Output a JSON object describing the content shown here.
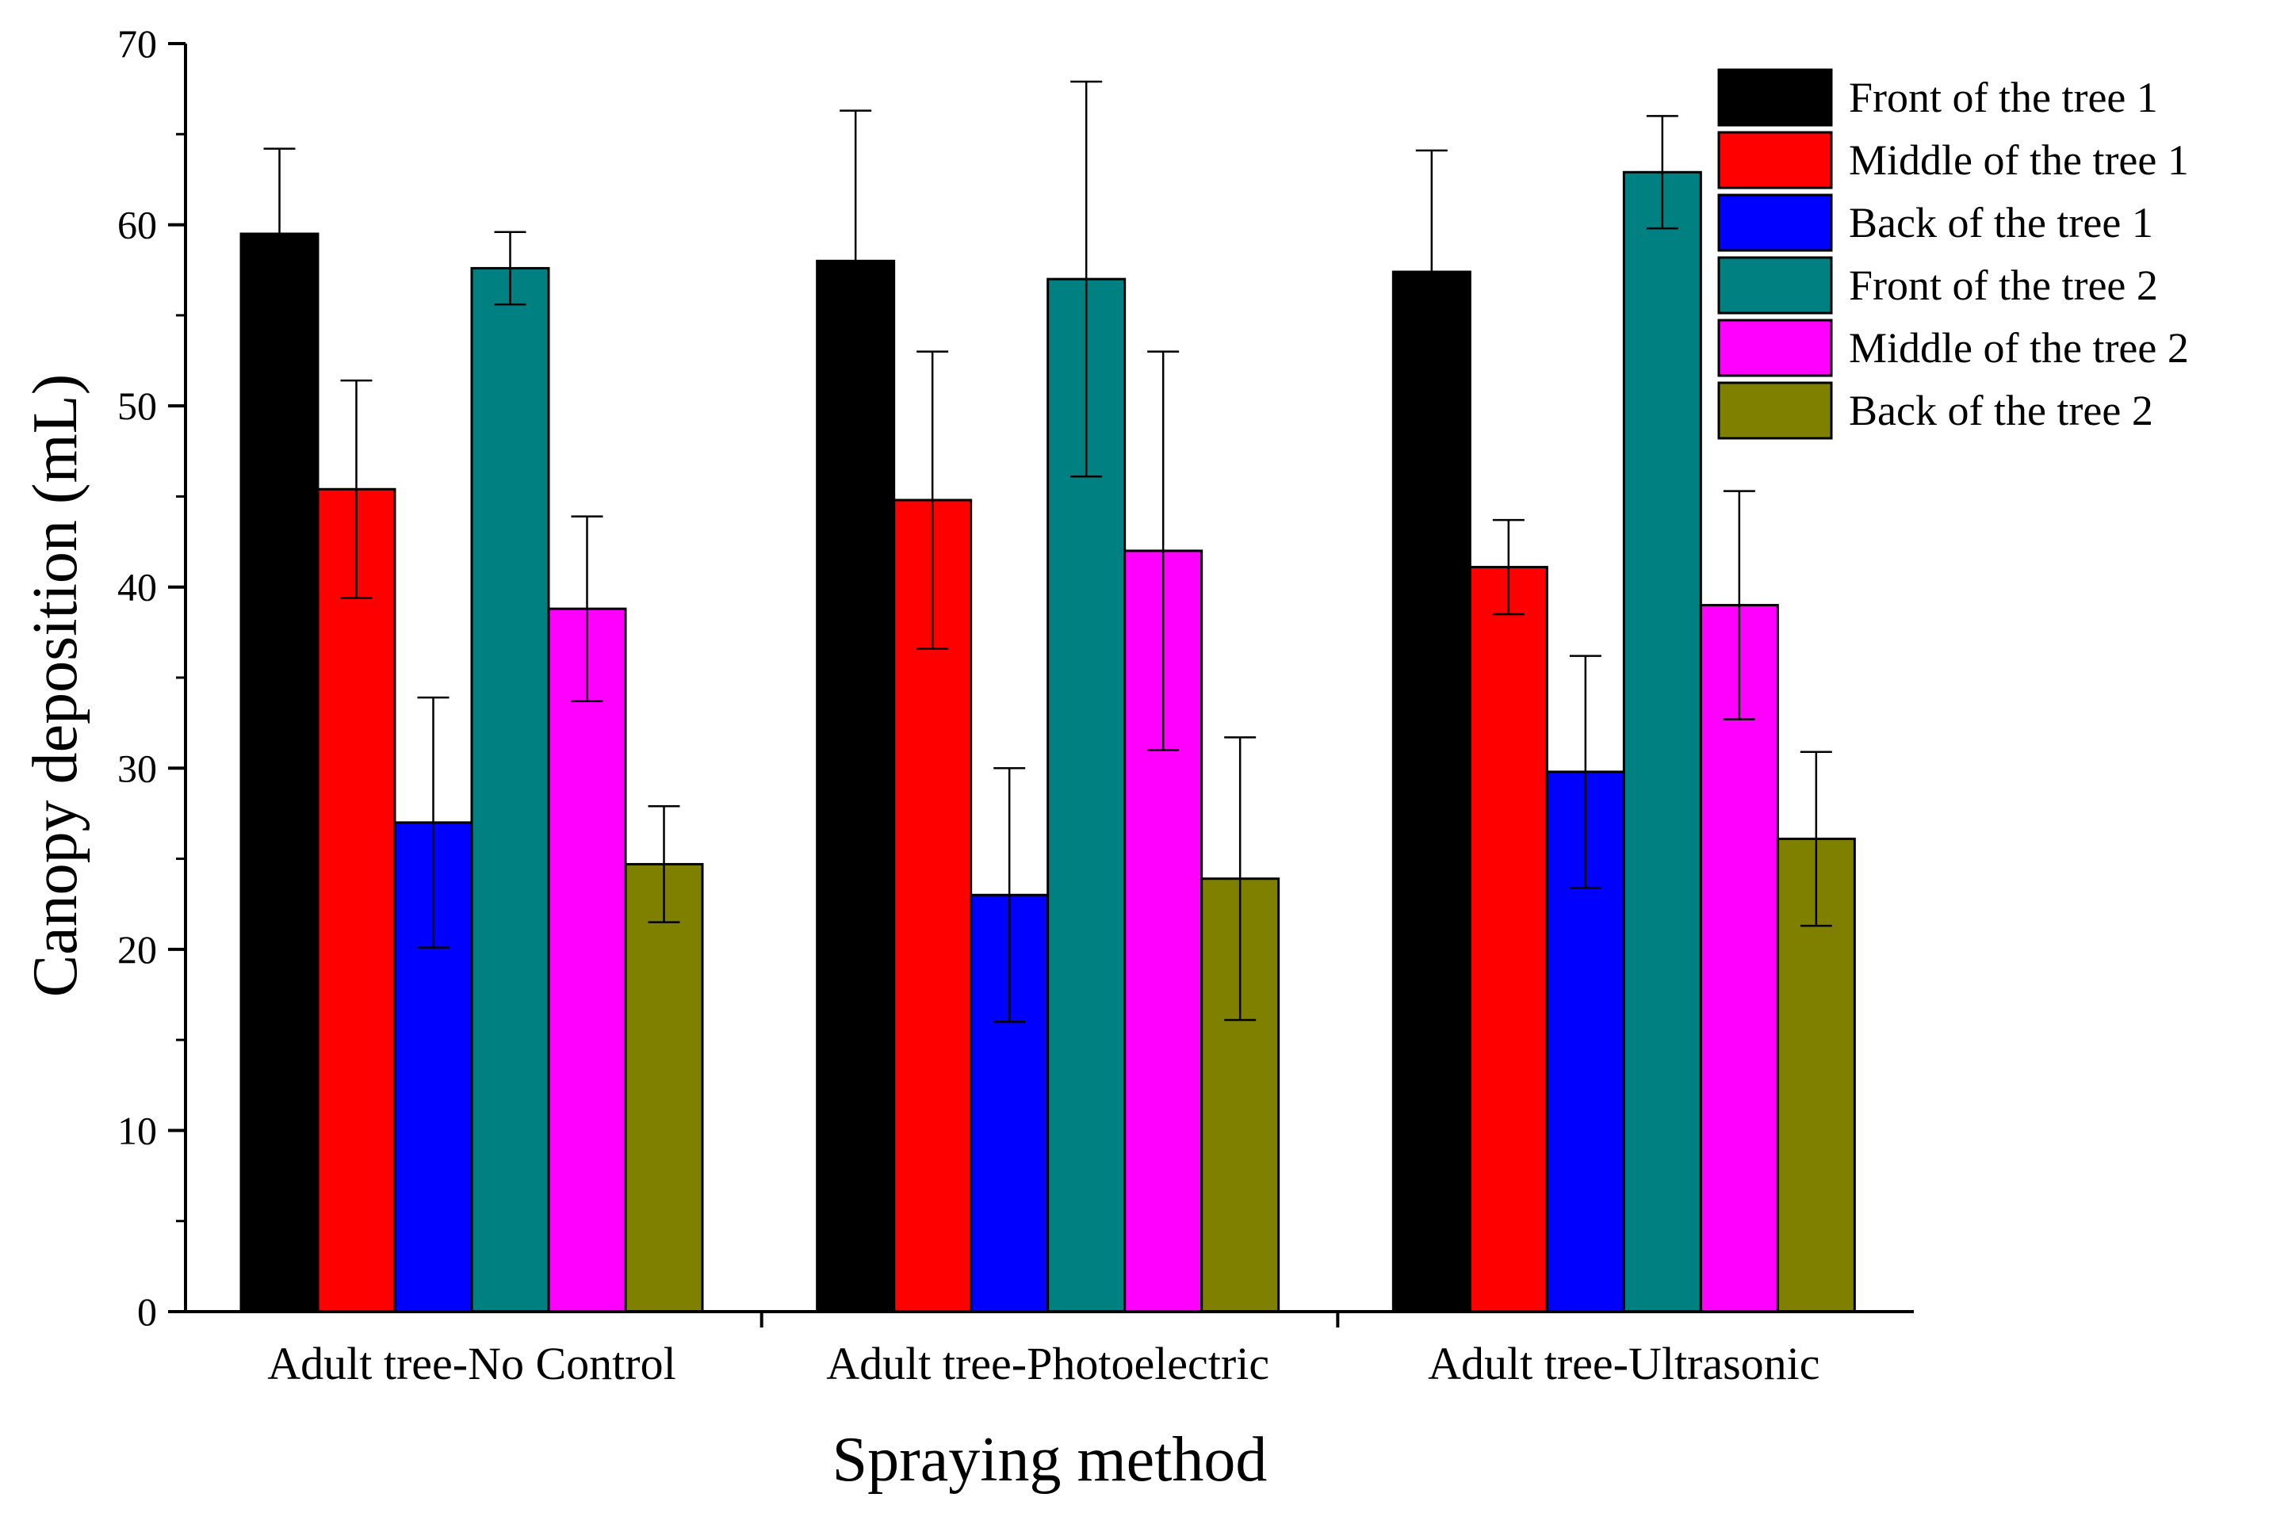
{
  "chart_data": {
    "type": "bar",
    "title": "",
    "xlabel": "Spraying method",
    "ylabel": "Canopy deposition (mL)",
    "ylim": [
      0,
      70
    ],
    "yticks": [
      0,
      10,
      20,
      30,
      40,
      50,
      60,
      70
    ],
    "grid": false,
    "legend_position": "top-right",
    "categories": [
      "Adult tree-No Control",
      "Adult tree-Photoelectric",
      "Adult tree-Ultrasonic"
    ],
    "series": [
      {
        "name": "Front of the tree 1",
        "color": "#000000",
        "values": [
          59.5,
          58.0,
          57.4
        ],
        "errors": [
          4.7,
          8.3,
          6.7
        ]
      },
      {
        "name": "Middle of the tree 1",
        "color": "#ff0000",
        "values": [
          45.4,
          44.8,
          41.1
        ],
        "errors": [
          6.0,
          8.2,
          2.6
        ]
      },
      {
        "name": "Back of the tree 1",
        "color": "#0000ff",
        "values": [
          27.0,
          23.0,
          29.8
        ],
        "errors": [
          6.9,
          7.0,
          6.4
        ]
      },
      {
        "name": "Front of the tree 2",
        "color": "#008080",
        "values": [
          57.6,
          57.0,
          62.9
        ],
        "errors": [
          2.0,
          10.9,
          3.1
        ]
      },
      {
        "name": "Middle of the tree 2",
        "color": "#ff00ff",
        "values": [
          38.8,
          42.0,
          39.0
        ],
        "errors": [
          5.1,
          11.0,
          6.3
        ]
      },
      {
        "name": "Back of the tree 2",
        "color": "#808000",
        "values": [
          24.7,
          23.9,
          26.1
        ],
        "errors": [
          3.2,
          7.8,
          4.8
        ]
      }
    ]
  }
}
